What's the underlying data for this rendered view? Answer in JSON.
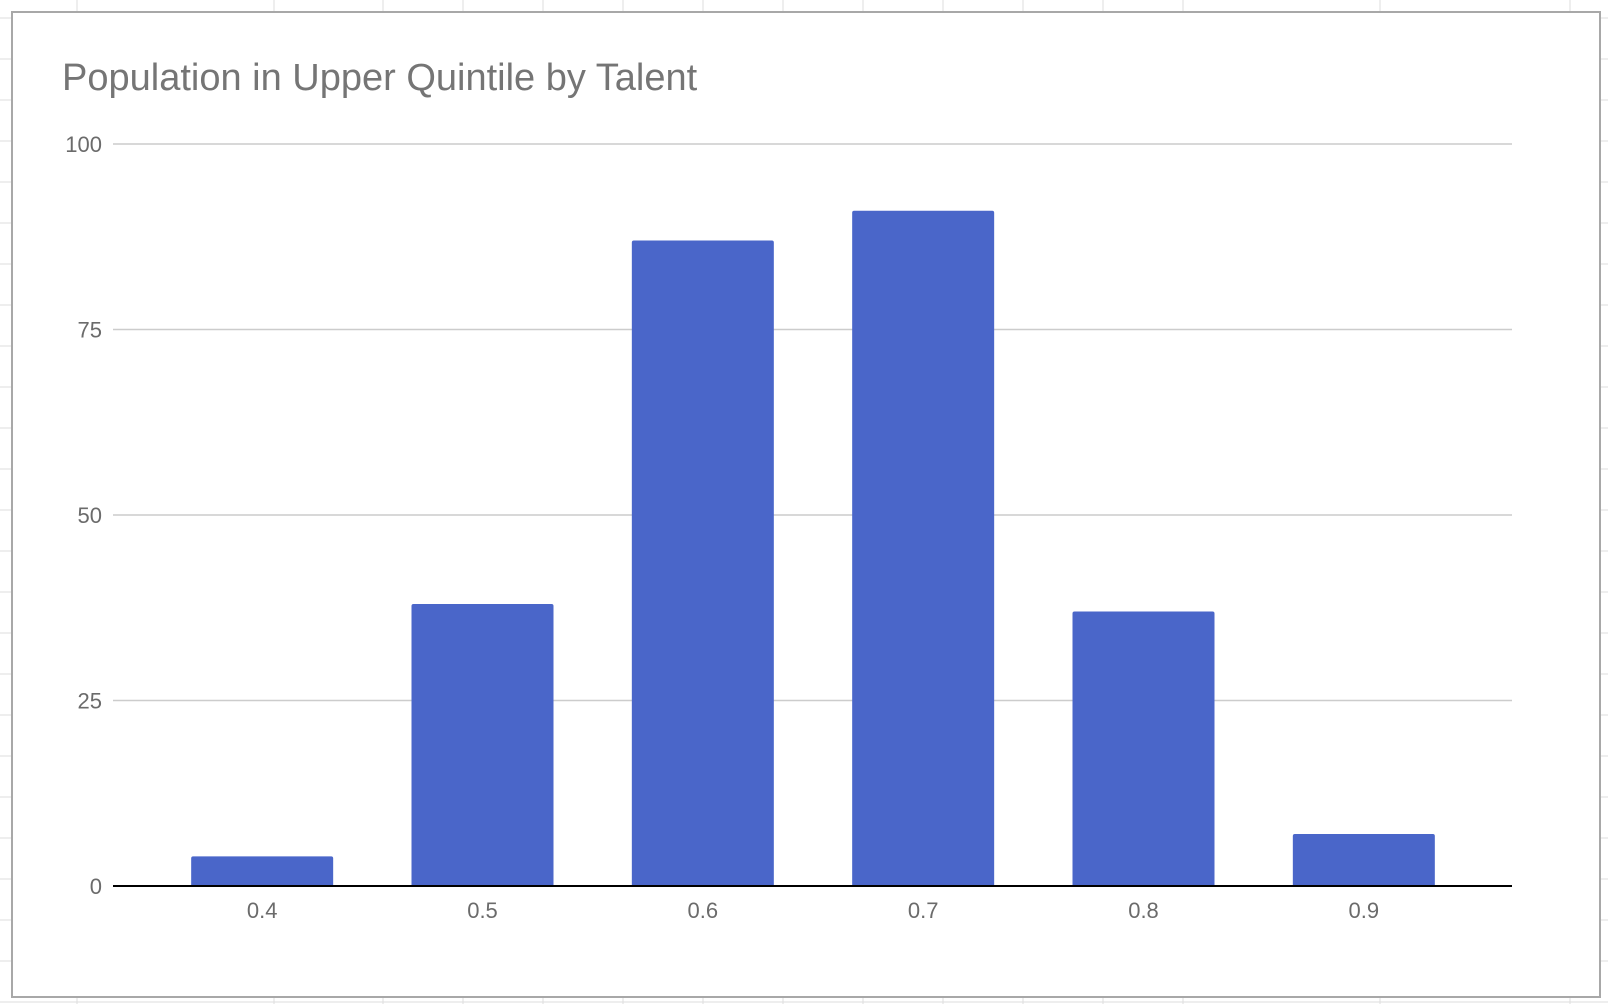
{
  "chart_data": {
    "type": "bar",
    "title": "Population in Upper Quintile by Talent",
    "xlabel": "",
    "ylabel": "",
    "categories": [
      "0.4",
      "0.5",
      "0.6",
      "0.7",
      "0.8",
      "0.9"
    ],
    "values": [
      4,
      38,
      87,
      91,
      37,
      7
    ],
    "ylim": [
      0,
      100
    ],
    "yticks": [
      "0",
      "25",
      "50",
      "75",
      "100"
    ],
    "grid": true,
    "legend": "none",
    "bar_color": "#4a66c9"
  },
  "colors": {
    "gridline": "#cccccc",
    "baseline": "#000000",
    "sheet_grid": "#dedede",
    "card_border": "#a8a8a8"
  }
}
